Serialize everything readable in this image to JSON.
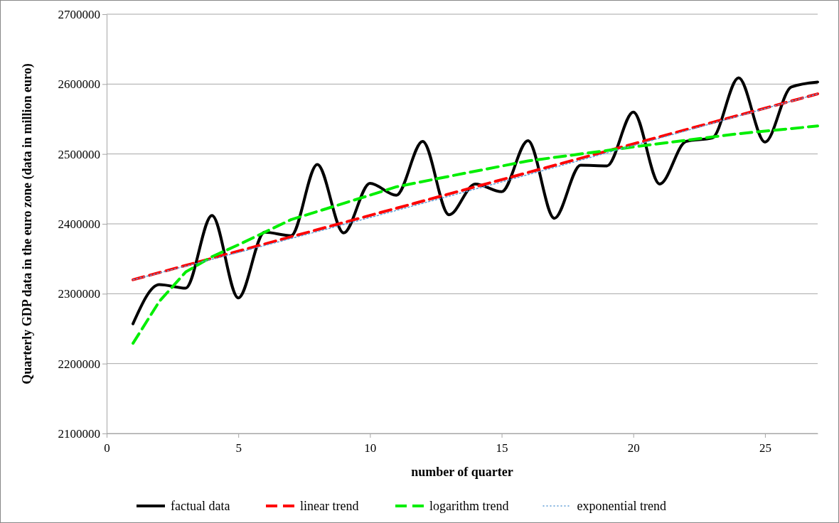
{
  "chart_data": {
    "type": "line",
    "xlabel": "number of quarter",
    "ylabel": "Quarterly  GDP data in the euro zone  (data in million euro)",
    "xlim": [
      0,
      27
    ],
    "xticks": [
      0,
      5,
      10,
      15,
      20,
      25
    ],
    "ylim": [
      2100000,
      2700000
    ],
    "yticks": [
      2100000,
      2200000,
      2300000,
      2400000,
      2500000,
      2600000,
      2700000
    ],
    "grid": "y",
    "legend": "bottom",
    "series": [
      {
        "name": "factual data",
        "color": "#000000",
        "line_style": "solid",
        "x": [
          1,
          2,
          3,
          4,
          5,
          6,
          7,
          8,
          9,
          10,
          11,
          12,
          13,
          14,
          15,
          16,
          17,
          18,
          19,
          20,
          21,
          22,
          23,
          24,
          25,
          26,
          27
        ],
        "values": [
          2257000,
          2313000,
          2308000,
          2412000,
          2294000,
          2388000,
          2383000,
          2485000,
          2387000,
          2458000,
          2441000,
          2518000,
          2413000,
          2457000,
          2446000,
          2519000,
          2408000,
          2484000,
          2483000,
          2560000,
          2457000,
          2518000,
          2523000,
          2609000,
          2517000,
          2596000,
          2603000
        ]
      },
      {
        "name": "linear trend",
        "color": "#ff0000",
        "line_style": "dashed",
        "x": [
          1,
          27
        ],
        "values": [
          2320000,
          2586000
        ]
      },
      {
        "name": "logarithm trend",
        "color": "#00ee00",
        "line_style": "dashed",
        "x": [
          1,
          2,
          3,
          4,
          5,
          7,
          10,
          11,
          13,
          16,
          19,
          20,
          24,
          27
        ],
        "values": [
          2229000,
          2289000,
          2331000,
          2353000,
          2370000,
          2406000,
          2441000,
          2453000,
          2468000,
          2490000,
          2505000,
          2510000,
          2529000,
          2540000
        ]
      },
      {
        "name": "exponential trend",
        "color": "#5b9bd5",
        "line_style": "dotted",
        "x": [
          1,
          5,
          10,
          15,
          20,
          25,
          27
        ],
        "values": [
          2320000,
          2359000,
          2409000,
          2460000,
          2512000,
          2565000,
          2586000
        ]
      }
    ]
  }
}
